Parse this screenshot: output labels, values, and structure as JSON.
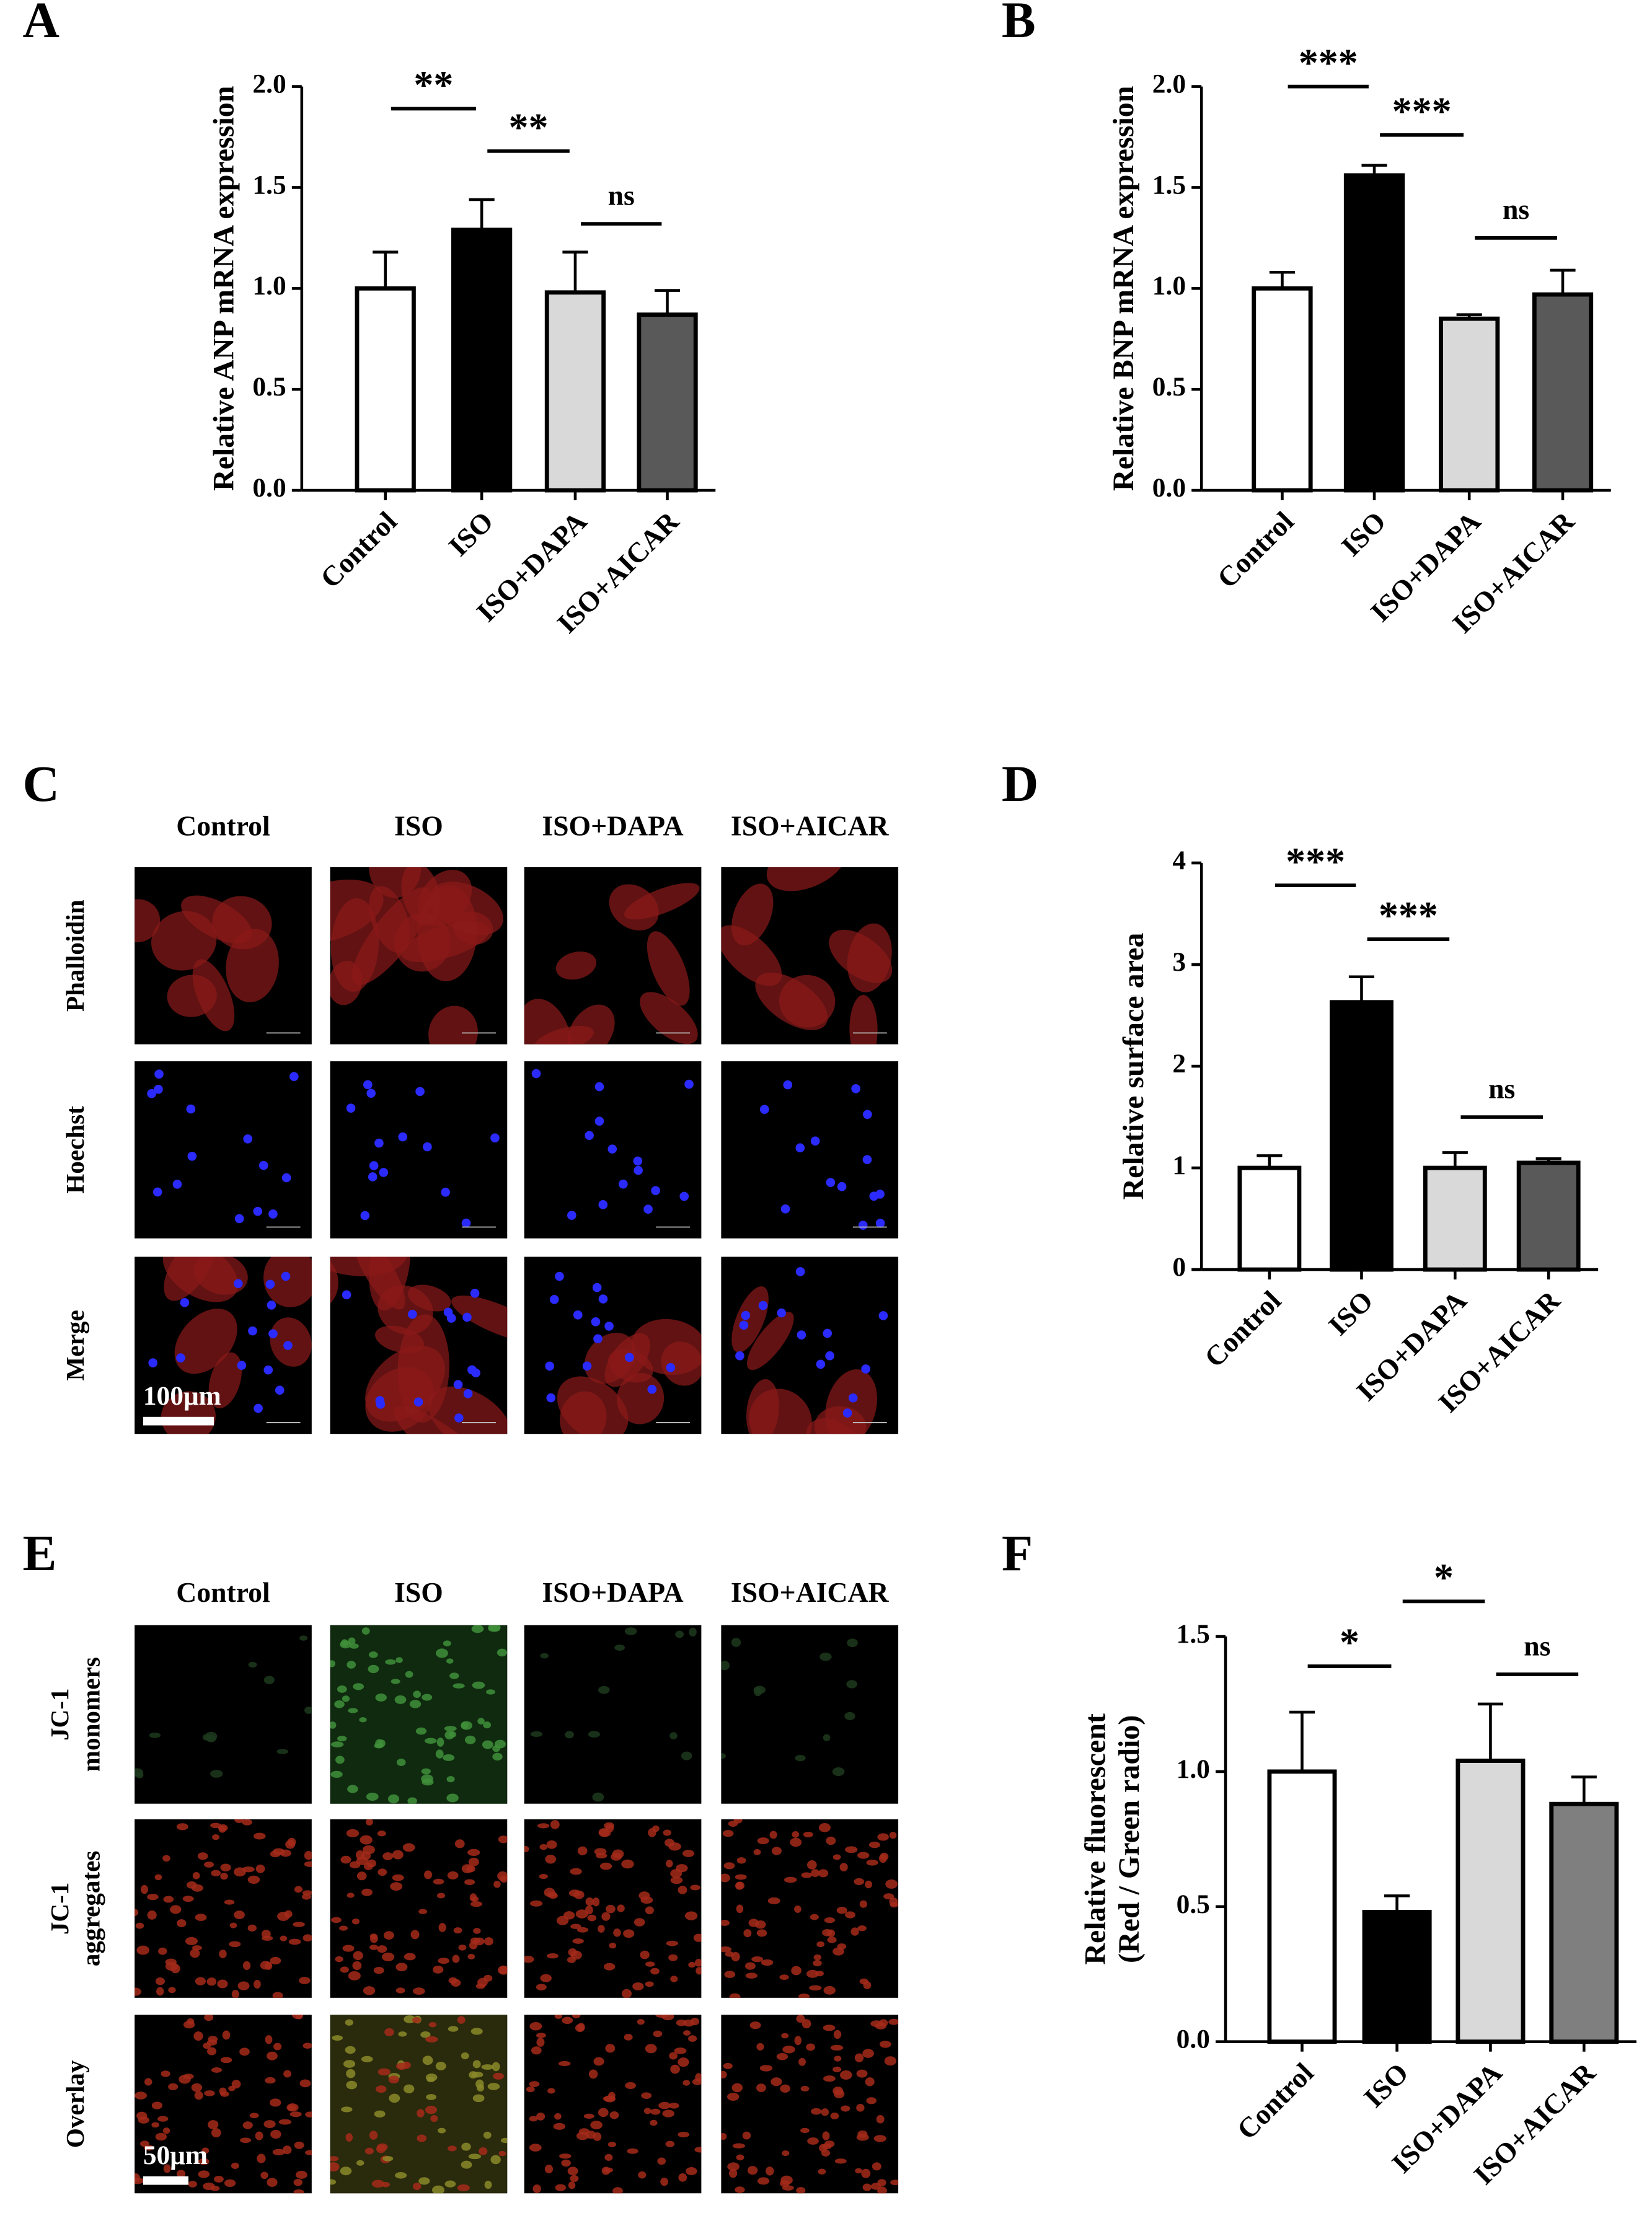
{
  "chart_data": [
    {
      "type": "bar",
      "panel": "A",
      "ylabel": [
        "Relative ANP mRNA expression"
      ],
      "categories": [
        "Control",
        "ISO",
        "ISO+DAPA",
        "ISO+AICAR"
      ],
      "values": [
        1.0,
        1.29,
        0.98,
        0.87
      ],
      "errors": [
        0.18,
        0.15,
        0.2,
        0.12
      ],
      "colors": [
        "#ffffff",
        "#000000",
        "#d9d9d9",
        "#595959"
      ],
      "ylim": [
        0,
        2
      ],
      "yticks": [
        {
          "value": 0,
          "label": "0.0"
        },
        {
          "value": 0.5,
          "label": "0.5"
        },
        {
          "value": 1,
          "label": "1.0"
        },
        {
          "value": 1.5,
          "label": "1.5"
        },
        {
          "value": 2,
          "label": "2.0"
        }
      ],
      "significance": [
        {
          "label": "**",
          "pair": [
            0,
            1
          ],
          "y": 1.89
        },
        {
          "label": "**",
          "pair": [
            1,
            2
          ],
          "y": 1.68
        },
        {
          "label": "ns",
          "pair": [
            2,
            3
          ],
          "y": 1.32
        }
      ]
    },
    {
      "type": "bar",
      "panel": "B",
      "ylabel": [
        "Relative BNP mRNA expression"
      ],
      "categories": [
        "Control",
        "ISO",
        "ISO+DAPA",
        "ISO+AICAR"
      ],
      "values": [
        1.0,
        1.56,
        0.85,
        0.97
      ],
      "errors": [
        0.08,
        0.05,
        0.02,
        0.12
      ],
      "colors": [
        "#ffffff",
        "#000000",
        "#d9d9d9",
        "#595959"
      ],
      "ylim": [
        0,
        2
      ],
      "yticks": [
        {
          "value": 0,
          "label": "0.0"
        },
        {
          "value": 0.5,
          "label": "0.5"
        },
        {
          "value": 1,
          "label": "1.0"
        },
        {
          "value": 1.5,
          "label": "1.5"
        },
        {
          "value": 2,
          "label": "2.0"
        }
      ],
      "significance": [
        {
          "label": "***",
          "pair": [
            0,
            1
          ],
          "y": 2.0
        },
        {
          "label": "***",
          "pair": [
            1,
            2
          ],
          "y": 1.76
        },
        {
          "label": "ns",
          "pair": [
            2,
            3
          ],
          "y": 1.25
        }
      ]
    },
    {
      "type": "bar",
      "panel": "D",
      "ylabel": [
        "Relative surface area"
      ],
      "categories": [
        "Control",
        "ISO",
        "ISO+DAPA",
        "ISO+AICAR"
      ],
      "values": [
        1.0,
        2.63,
        1.0,
        1.05
      ],
      "errors": [
        0.12,
        0.25,
        0.15,
        0.04
      ],
      "colors": [
        "#ffffff",
        "#000000",
        "#d9d9d9",
        "#595959"
      ],
      "ylim": [
        0,
        4
      ],
      "yticks": [
        0,
        1,
        2,
        3,
        4
      ],
      "significance": [
        {
          "label": "***",
          "pair": [
            0,
            1
          ],
          "y": 3.78
        },
        {
          "label": "***",
          "pair": [
            1,
            2
          ],
          "y": 3.25
        },
        {
          "label": "ns",
          "pair": [
            2,
            3
          ],
          "y": 1.5
        }
      ]
    },
    {
      "type": "bar",
      "panel": "F",
      "ylabel": [
        "Relative fluorescent",
        "(Red / Green radio)"
      ],
      "categories": [
        "Control",
        "ISO",
        "ISO+DAPA",
        "ISO+AICAR"
      ],
      "values": [
        1.0,
        0.48,
        1.04,
        0.88
      ],
      "errors": [
        0.22,
        0.06,
        0.21,
        0.1
      ],
      "colors": [
        "#ffffff",
        "#000000",
        "#d9d9d9",
        "#7f7f7f"
      ],
      "ylim": [
        0,
        1.5
      ],
      "yticks": [
        {
          "value": 0,
          "label": "0.0"
        },
        {
          "value": 0.5,
          "label": "0.5"
        },
        {
          "value": 1,
          "label": "1.0"
        },
        {
          "value": 1.5,
          "label": "1.5"
        }
      ],
      "significance": [
        {
          "label": "*",
          "pair": [
            0,
            1
          ],
          "y": 1.39
        },
        {
          "label": "*",
          "pair": [
            1,
            2
          ],
          "y": 1.63
        },
        {
          "label": "ns",
          "pair": [
            2,
            3
          ],
          "y": 1.36
        }
      ]
    }
  ],
  "image_panels": [
    {
      "panel": "C",
      "columns": [
        "Control",
        "ISO",
        "ISO+DAPA",
        "ISO+AICAR"
      ],
      "rows": [
        [
          "Phalloidin"
        ],
        [
          "Hoechst"
        ],
        [
          "Merge"
        ]
      ],
      "scale_bar": "100μm"
    },
    {
      "panel": "E",
      "columns": [
        "Control",
        "ISO",
        "ISO+DAPA",
        "ISO+AICAR"
      ],
      "rows": [
        [
          "JC-1",
          "monomers"
        ],
        [
          "JC-1",
          "aggregates"
        ],
        [
          "Overlay"
        ]
      ],
      "scale_bar": "50μm"
    }
  ]
}
